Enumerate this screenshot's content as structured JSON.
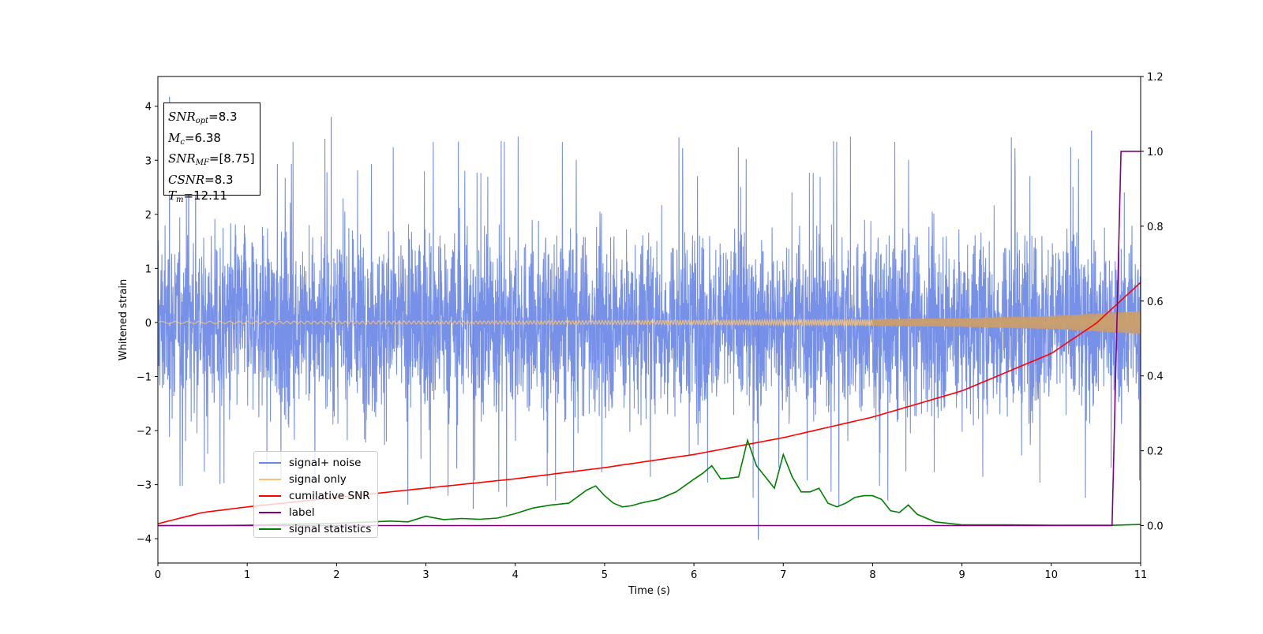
{
  "chart_data": {
    "type": "line",
    "xlabel": "Time (s)",
    "ylabel": "Whitened strain",
    "xlim": [
      0,
      11
    ],
    "ylim": [
      -4.45,
      4.55
    ],
    "y2lim": [
      -0.1,
      1.2
    ],
    "x_ticks": [
      0,
      1,
      2,
      3,
      4,
      5,
      6,
      7,
      8,
      9,
      10,
      11
    ],
    "x_tick_labels": [
      "0",
      "1",
      "2",
      "3",
      "4",
      "5",
      "6",
      "7",
      "8",
      "9",
      "10",
      "11"
    ],
    "y_ticks": [
      -4,
      -3,
      -2,
      -1,
      0,
      1,
      2,
      3,
      4
    ],
    "y_tick_labels": [
      "−4",
      "−3",
      "−2",
      "−1",
      "0",
      "1",
      "2",
      "3",
      "4"
    ],
    "y2_ticks": [
      0,
      0.2,
      0.4,
      0.6,
      0.8,
      1.0,
      1.2
    ],
    "y2_tick_labels": [
      "0.0",
      "0.2",
      "0.4",
      "0.6",
      "0.8",
      "1.0",
      "1.2"
    ],
    "grid": false,
    "legend_position": "lower-left",
    "series": [
      {
        "name": "signal+ noise",
        "axis": "left",
        "color": "#6b87e6",
        "style": "dense noise band, roughly within ±2.5 with spikes up to 4.2 and down to -4.0",
        "envelope": {
          "x": [
            0,
            11
          ],
          "typical_amplitude": 1.9,
          "max_spike": 4.17,
          "min_spike": -4.02
        }
      },
      {
        "name": "signal only",
        "axis": "left",
        "color": "#f5c171",
        "style": "chirp oscillation growing in amplitude",
        "amplitude": {
          "x": [
            0,
            2,
            4,
            6,
            8,
            9,
            10,
            11
          ],
          "y": [
            0.02,
            0.025,
            0.03,
            0.04,
            0.06,
            0.08,
            0.12,
            0.21
          ]
        }
      },
      {
        "name": "cumilative SNR",
        "axis": "right",
        "color": "#ff0000",
        "x": [
          0,
          0.5,
          1,
          2,
          3,
          4,
          5,
          6,
          7,
          8,
          9,
          10,
          10.5,
          11
        ],
        "y": [
          0.005,
          0.035,
          0.05,
          0.075,
          0.1,
          0.125,
          0.155,
          0.19,
          0.235,
          0.29,
          0.36,
          0.46,
          0.54,
          0.65
        ]
      },
      {
        "name": "label",
        "axis": "right",
        "color": "#800080",
        "x": [
          0,
          10.68,
          10.78,
          11
        ],
        "y": [
          0,
          0,
          1,
          1
        ]
      },
      {
        "name": "signal statistics",
        "axis": "right",
        "color": "#008000",
        "x": [
          0,
          0.5,
          1,
          1.5,
          2,
          2.3,
          2.6,
          2.8,
          3,
          3.2,
          3.4,
          3.6,
          3.8,
          4,
          4.2,
          4.4,
          4.6,
          4.8,
          4.9,
          5,
          5.1,
          5.2,
          5.3,
          5.4,
          5.6,
          5.8,
          6,
          6.1,
          6.2,
          6.3,
          6.4,
          6.5,
          6.6,
          6.7,
          6.8,
          6.9,
          7,
          7.1,
          7.2,
          7.3,
          7.4,
          7.5,
          7.6,
          7.7,
          7.8,
          7.9,
          8,
          8.1,
          8.2,
          8.3,
          8.4,
          8.5,
          8.7,
          9,
          9.5,
          10,
          10.5,
          10.7,
          11
        ],
        "y": [
          0,
          0,
          0.001,
          0.004,
          0.006,
          0.009,
          0.012,
          0.01,
          0.025,
          0.016,
          0.019,
          0.017,
          0.02,
          0.032,
          0.047,
          0.055,
          0.06,
          0.095,
          0.106,
          0.08,
          0.06,
          0.05,
          0.053,
          0.06,
          0.07,
          0.09,
          0.124,
          0.14,
          0.16,
          0.125,
          0.127,
          0.13,
          0.228,
          0.16,
          0.13,
          0.1,
          0.19,
          0.13,
          0.09,
          0.09,
          0.1,
          0.06,
          0.05,
          0.06,
          0.075,
          0.08,
          0.08,
          0.07,
          0.04,
          0.035,
          0.055,
          0.03,
          0.01,
          0.002,
          0.002,
          0.001,
          0.001,
          0.001,
          0.003
        ]
      }
    ],
    "annotation_box": {
      "rows": [
        {
          "sym": "SNR",
          "sub": "opt",
          "val": "=8.3"
        },
        {
          "sym": "M",
          "sub": "c",
          "val": "=6.38"
        },
        {
          "sym": "SNR",
          "sub": "MF",
          "val": "=[8.75]"
        },
        {
          "sym": "CSNR",
          "sub": "",
          "val": "=8.3"
        },
        {
          "sym": "T",
          "sub": "m",
          "val": "=12.11"
        }
      ]
    }
  }
}
